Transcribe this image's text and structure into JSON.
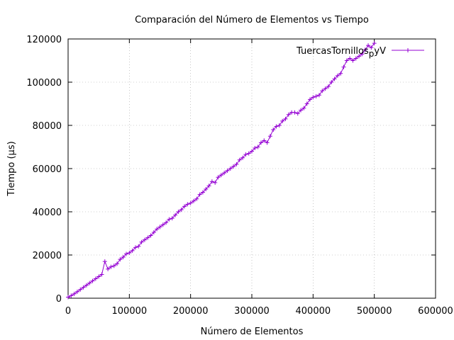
{
  "chart_data": {
    "type": "line",
    "title": "Comparación del Número de Elementos vs Tiempo",
    "xlabel": "Número de Elementos",
    "ylabel": "Tiempo (µs)",
    "xlim": [
      0,
      600000
    ],
    "ylim": [
      0,
      120000
    ],
    "xticks": [
      0,
      100000,
      200000,
      300000,
      400000,
      500000,
      600000
    ],
    "yticks": [
      0,
      20000,
      40000,
      60000,
      80000,
      100000,
      120000
    ],
    "xtick_labels": [
      "0",
      "100000",
      "200000",
      "300000",
      "400000",
      "500000",
      "600000"
    ],
    "ytick_labels": [
      "0",
      "20000",
      "40000",
      "60000",
      "80000",
      "100000",
      "120000"
    ],
    "grid": true,
    "legend_position": "top-right",
    "series": [
      {
        "name": "TuercasTornillos_pyV",
        "color": "#9400d3",
        "marker": "plus",
        "x": [
          0,
          5000,
          10000,
          15000,
          20000,
          25000,
          30000,
          35000,
          40000,
          45000,
          50000,
          55000,
          60000,
          65000,
          70000,
          75000,
          80000,
          85000,
          90000,
          95000,
          100000,
          105000,
          110000,
          115000,
          120000,
          125000,
          130000,
          135000,
          140000,
          145000,
          150000,
          155000,
          160000,
          165000,
          170000,
          175000,
          180000,
          185000,
          190000,
          195000,
          200000,
          205000,
          210000,
          215000,
          220000,
          225000,
          230000,
          235000,
          240000,
          245000,
          250000,
          255000,
          260000,
          265000,
          270000,
          275000,
          280000,
          285000,
          290000,
          295000,
          300000,
          305000,
          310000,
          315000,
          320000,
          325000,
          330000,
          335000,
          340000,
          345000,
          350000,
          355000,
          360000,
          365000,
          370000,
          375000,
          380000,
          385000,
          390000,
          395000,
          400000,
          405000,
          410000,
          415000,
          420000,
          425000,
          430000,
          435000,
          440000,
          445000,
          450000,
          455000,
          460000,
          465000,
          470000,
          475000,
          480000,
          485000,
          490000,
          495000,
          500000
        ],
        "y": [
          500,
          1200,
          2000,
          3000,
          4000,
          5000,
          6000,
          7000,
          8000,
          9000,
          10000,
          11000,
          17000,
          13500,
          14500,
          15000,
          16000,
          18000,
          19000,
          20500,
          21000,
          22000,
          23500,
          24000,
          26000,
          27000,
          28000,
          29000,
          30500,
          32000,
          33000,
          34000,
          35000,
          36500,
          37000,
          38500,
          40000,
          41000,
          42500,
          43500,
          44000,
          45000,
          46000,
          48000,
          49000,
          50500,
          52000,
          54000,
          53500,
          56000,
          57000,
          58000,
          59000,
          60000,
          61000,
          62000,
          64000,
          65000,
          66500,
          67000,
          68000,
          69500,
          70000,
          72000,
          73000,
          72000,
          75000,
          78000,
          79500,
          80000,
          82000,
          83000,
          85000,
          86000,
          86000,
          85500,
          87000,
          88000,
          90000,
          92000,
          93000,
          93500,
          94000,
          96000,
          97000,
          98000,
          100000,
          101500,
          103000,
          104000,
          107000,
          110000,
          111000,
          110000,
          111000,
          112000,
          113000,
          115000,
          117000,
          116000,
          118000
        ]
      }
    ]
  }
}
